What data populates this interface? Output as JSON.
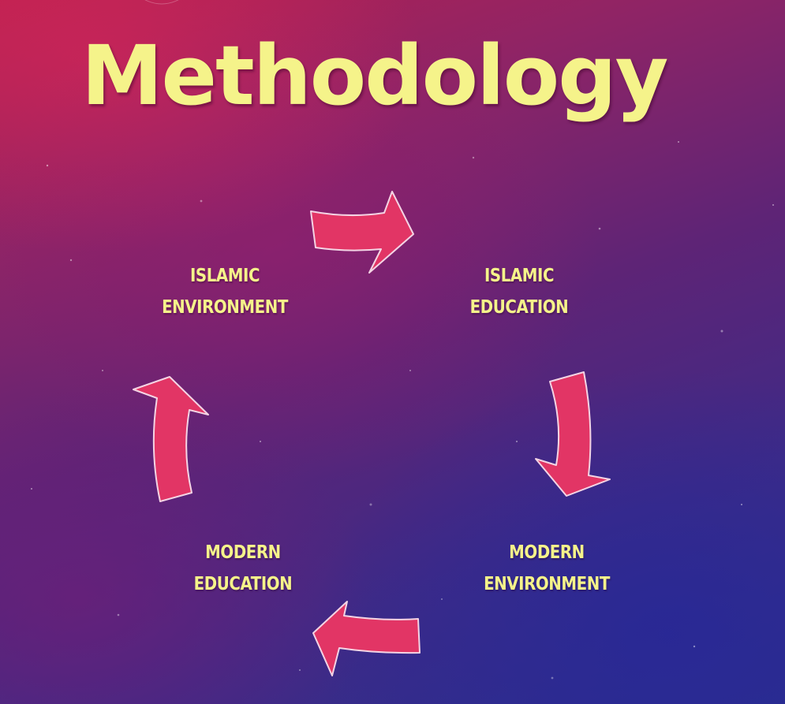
{
  "slide": {
    "title": "Methodology"
  },
  "cycle": {
    "nodes": [
      {
        "line1": "ISLAMIC",
        "line2": "ENVIRONMENT"
      },
      {
        "line1": "ISLAMIC",
        "line2": "EDUCATION"
      },
      {
        "line1": "MODERN",
        "line2": "ENVIRONMENT"
      },
      {
        "line1": "MODERN",
        "line2": "EDUCATION"
      }
    ],
    "arrow_color": "#e23565",
    "text_color": "#f5f38a"
  }
}
